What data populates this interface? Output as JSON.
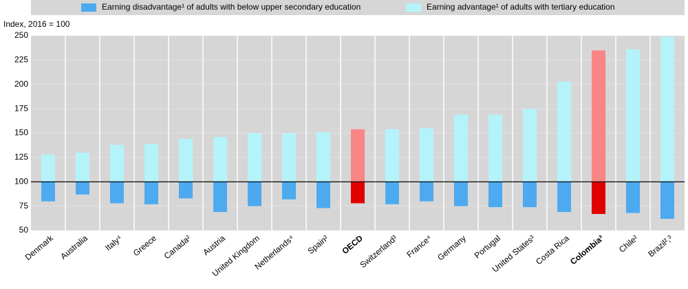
{
  "chart_data": {
    "type": "floating-bar",
    "y_axis_label": "Index, 2016 = 100",
    "categories": [
      "Denmark",
      "Australia",
      "Italy⁴",
      "Greece",
      "Canada²",
      "Austria",
      "United Kingdom",
      "Netherlands⁴",
      "Spain²",
      "OECD",
      "Switzerland³",
      "France⁴",
      "Germany",
      "Portugal",
      "United States³",
      "Costa Rica",
      "Colombia³",
      "Chile²",
      "Brazil²,³"
    ],
    "baseline": 100,
    "highlight": [
      9,
      16
    ],
    "series": [
      {
        "name": "Earning disadvantage¹ of adults with below upper secondary education",
        "color": "#4daaf0",
        "highlight_color": "#e00000",
        "values": [
          80,
          87,
          78,
          77,
          83,
          69,
          75,
          82,
          73,
          78,
          77,
          80,
          75,
          74,
          74,
          69,
          67,
          68,
          62
        ]
      },
      {
        "name": "Earning advantage¹ of adults with tertiary education",
        "color": "#b5f3fb",
        "highlight_color": "#f98585",
        "values": [
          128,
          130,
          138,
          139,
          144,
          146,
          150,
          150,
          151,
          154,
          154,
          155,
          169,
          169,
          175,
          203,
          235,
          236,
          249
        ]
      }
    ],
    "ylim": [
      50,
      250
    ],
    "yticks": [
      50,
      75,
      100,
      125,
      150,
      175,
      200,
      225,
      250
    ],
    "grid": true
  }
}
